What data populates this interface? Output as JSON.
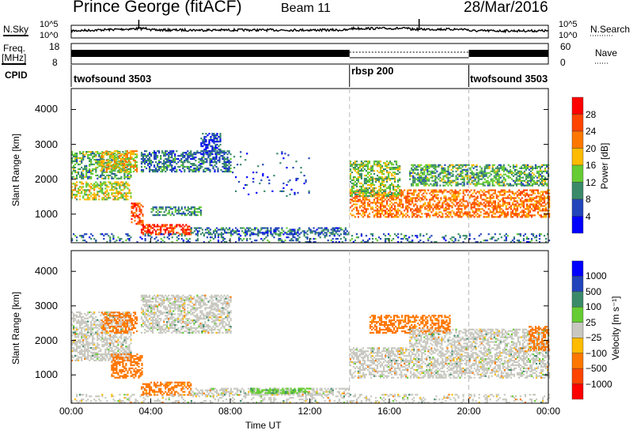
{
  "header": {
    "title": "Prince George (fitACF)",
    "beam": "Beam 11",
    "date": "28/Mar/2016"
  },
  "noise": {
    "left_label": "N.Sky",
    "right_label": "N.Search",
    "left_ticks": [
      "10^5",
      "10^0"
    ],
    "right_ticks": [
      "10^5",
      "10^0"
    ]
  },
  "freq": {
    "left_label_1": "Freq.",
    "left_label_2": "[MHz]",
    "left_ticks": [
      "18",
      "8"
    ],
    "right_ticks": [
      "60",
      "0"
    ],
    "right_label": "Nave"
  },
  "cpid": {
    "label": "CPID",
    "segments": [
      {
        "name": "twofsound 3503",
        "start": 0
      },
      {
        "name": "rbsp 200",
        "start": 14
      },
      {
        "name": "twofsound 3503",
        "start": 20
      }
    ]
  },
  "chart_data": [
    {
      "type": "heatmap",
      "title": "Power",
      "ylabel": "Slant Range [km]",
      "xlabel": "Time UT",
      "xlim": [
        0,
        24
      ],
      "ylim": [
        180,
        4600
      ],
      "yticks": [
        "1000",
        "2000",
        "3000",
        "4000"
      ],
      "xticks": [
        "00:00",
        "04:00",
        "08:00",
        "12:00",
        "16:00",
        "20:00",
        "00:00"
      ],
      "colorbar": {
        "label": "Power [dB]",
        "ticks": [
          "28",
          "24",
          "20",
          "16",
          "12",
          "8",
          "4"
        ],
        "colors": [
          "#0000ff",
          "#2244bb",
          "#3a8a6a",
          "#66cc33",
          "#ffbb00",
          "#ff7700",
          "#ff4400",
          "#ff0000"
        ],
        "bounds": [
          0,
          4,
          8,
          12,
          16,
          20,
          24,
          28,
          32
        ]
      },
      "regions": [
        {
          "t": [
            0,
            3
          ],
          "r": [
            2000,
            2800
          ],
          "v": 12
        },
        {
          "t": [
            0,
            3
          ],
          "r": [
            1400,
            1900
          ],
          "v": 16
        },
        {
          "t": [
            1.5,
            3.3
          ],
          "r": [
            2200,
            2800
          ],
          "v": 18
        },
        {
          "t": [
            3,
            3.6
          ],
          "r": [
            700,
            1300
          ],
          "v": 26
        },
        {
          "t": [
            3.5,
            6
          ],
          "r": [
            400,
            700
          ],
          "v": 27
        },
        {
          "t": [
            4,
            6.5
          ],
          "r": [
            950,
            1200
          ],
          "v": 10
        },
        {
          "t": [
            3.5,
            8
          ],
          "r": [
            2200,
            2800
          ],
          "v": 8
        },
        {
          "t": [
            6.5,
            7.5
          ],
          "r": [
            2700,
            3300
          ],
          "v": 6
        },
        {
          "t": [
            6,
            14
          ],
          "r": [
            400,
            600
          ],
          "v": 8
        },
        {
          "t": [
            8,
            12
          ],
          "r": [
            1500,
            2800
          ],
          "v": 5,
          "d": 0.04
        },
        {
          "t": [
            14,
            24
          ],
          "r": [
            900,
            1700
          ],
          "v": 23
        },
        {
          "t": [
            14,
            16.5
          ],
          "r": [
            1500,
            2500
          ],
          "v": 14
        },
        {
          "t": [
            17,
            24
          ],
          "r": [
            1800,
            2400
          ],
          "v": 12
        },
        {
          "t": [
            0,
            24
          ],
          "r": [
            180,
            450
          ],
          "v": 8,
          "d": 0.25
        }
      ]
    },
    {
      "type": "heatmap",
      "title": "Velocity",
      "ylabel": "Slant Range [km]",
      "xlabel": "Time UT",
      "xlim": [
        0,
        24
      ],
      "ylim": [
        180,
        4600
      ],
      "yticks": [
        "1000",
        "2000",
        "3000",
        "4000"
      ],
      "xticks": [
        "00:00",
        "04:00",
        "08:00",
        "12:00",
        "16:00",
        "20:00",
        "00:00"
      ],
      "colorbar": {
        "label": "Velocity [m s⁻¹]",
        "ticks": [
          "1000",
          "500",
          "100",
          "25",
          "−25",
          "−100",
          "−500",
          "−1000"
        ],
        "colors": [
          "#ff0000",
          "#ff4400",
          "#ff7700",
          "#ffbb00",
          "#c8c8c0",
          "#66cc33",
          "#3a8a6a",
          "#2244bb",
          "#0000ff"
        ],
        "bounds": [
          -2000,
          -1000,
          -500,
          -100,
          -25,
          25,
          100,
          500,
          1000,
          2000
        ]
      },
      "regions": [
        {
          "t": [
            0,
            3
          ],
          "r": [
            1400,
            2800
          ],
          "v": 0
        },
        {
          "t": [
            1.5,
            3.3
          ],
          "r": [
            2200,
            2800
          ],
          "v": -150
        },
        {
          "t": [
            2,
            3.6
          ],
          "r": [
            900,
            1600
          ],
          "v": -300
        },
        {
          "t": [
            3.5,
            6
          ],
          "r": [
            400,
            800
          ],
          "v": -150
        },
        {
          "t": [
            3.5,
            8
          ],
          "r": [
            2200,
            3300
          ],
          "v": 0
        },
        {
          "t": [
            6,
            14
          ],
          "r": [
            400,
            600
          ],
          "v": 0
        },
        {
          "t": [
            9,
            12
          ],
          "r": [
            450,
            600
          ],
          "v": 50
        },
        {
          "t": [
            14,
            24
          ],
          "r": [
            900,
            1800
          ],
          "v": 0
        },
        {
          "t": [
            15,
            19
          ],
          "r": [
            2200,
            2700
          ],
          "v": -200
        },
        {
          "t": [
            17,
            24
          ],
          "r": [
            1800,
            2300
          ],
          "v": 0
        },
        {
          "t": [
            23,
            24
          ],
          "r": [
            1700,
            2400
          ],
          "v": -300
        },
        {
          "t": [
            0,
            24
          ],
          "r": [
            180,
            450
          ],
          "v": 0,
          "d": 0.25
        }
      ]
    }
  ]
}
